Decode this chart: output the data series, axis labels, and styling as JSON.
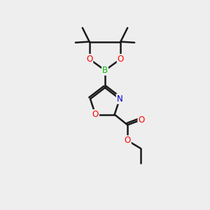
{
  "background_color": "#eeeeee",
  "bond_color": "#1a1a1a",
  "bond_width": 1.8,
  "atom_colors": {
    "O": "#ff0000",
    "N": "#0000cc",
    "B": "#00bb00",
    "C": "#1a1a1a"
  },
  "font_size": 8.5,
  "figsize": [
    3.0,
    3.0
  ],
  "dpi": 100,
  "xlim": [
    0,
    10
  ],
  "ylim": [
    0,
    12
  ]
}
